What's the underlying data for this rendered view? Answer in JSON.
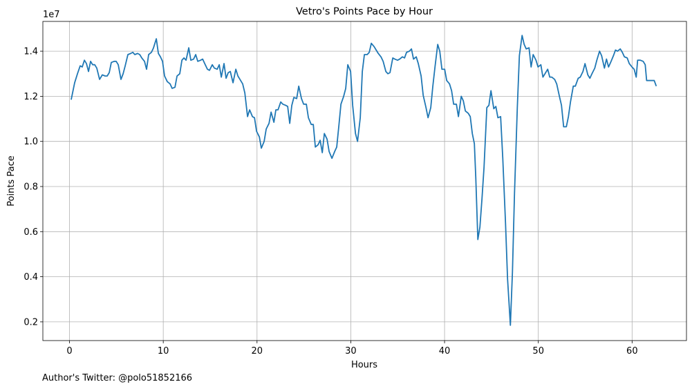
{
  "chart_data": {
    "type": "line",
    "title": "Vetro's Points Pace by Hour",
    "x_label": "Hours",
    "y_label": "Points Pace",
    "y_offset_label": "1e7",
    "footnote": "Author's Twitter: @polo51852166",
    "grid": true,
    "xlim": [
      -2.84,
      65.8
    ],
    "ylim": [
      1170000,
      15320000
    ],
    "xticks": [
      0,
      10,
      20,
      30,
      40,
      50,
      60
    ],
    "yticks": [
      {
        "value": 2000000,
        "label": "0.2"
      },
      {
        "value": 4000000,
        "label": "0.4"
      },
      {
        "value": 6000000,
        "label": "0.6"
      },
      {
        "value": 8000000,
        "label": "0.8"
      },
      {
        "value": 10000000,
        "label": "1.0"
      },
      {
        "value": 12000000,
        "label": "1.2"
      },
      {
        "value": 14000000,
        "label": "1.4"
      }
    ],
    "x": [
      0.18,
      0.55,
      0.85,
      1.14,
      1.36,
      1.59,
      1.81,
      2.03,
      2.25,
      2.47,
      2.69,
      2.91,
      3.21,
      3.5,
      3.8,
      4.02,
      4.24,
      4.46,
      4.76,
      4.98,
      5.2,
      5.49,
      5.72,
      5.94,
      6.23,
      6.53,
      6.75,
      6.97,
      7.26,
      7.49,
      7.71,
      8.0,
      8.22,
      8.44,
      8.74,
      8.96,
      9.26,
      9.48,
      9.7,
      9.92,
      10.14,
      10.43,
      10.73,
      10.95,
      11.25,
      11.47,
      11.76,
      11.99,
      12.21,
      12.43,
      12.72,
      12.94,
      13.24,
      13.46,
      13.68,
      13.98,
      14.2,
      14.42,
      14.71,
      14.93,
      15.23,
      15.45,
      15.75,
      15.97,
      16.19,
      16.48,
      16.7,
      16.93,
      17.15,
      17.44,
      17.74,
      17.96,
      18.18,
      18.47,
      18.7,
      18.99,
      19.21,
      19.51,
      19.73,
      19.95,
      20.25,
      20.46,
      20.76,
      20.98,
      21.28,
      21.5,
      21.8,
      22.01,
      22.24,
      22.53,
      22.75,
      23.05,
      23.27,
      23.49,
      23.71,
      23.93,
      24.23,
      24.45,
      24.74,
      24.97,
      25.26,
      25.48,
      25.78,
      26.0,
      26.22,
      26.51,
      26.73,
      26.96,
      27.18,
      27.47,
      27.69,
      27.99,
      28.28,
      28.5,
      28.73,
      28.95,
      29.24,
      29.46,
      29.68,
      29.98,
      30.2,
      30.5,
      30.72,
      31.01,
      31.23,
      31.45,
      31.75,
      31.97,
      32.19,
      32.49,
      32.71,
      32.93,
      33.22,
      33.45,
      33.74,
      33.96,
      34.18,
      34.48,
      34.7,
      34.99,
      35.21,
      35.51,
      35.73,
      35.95,
      36.25,
      36.47,
      36.69,
      36.98,
      37.2,
      37.5,
      37.72,
      38.02,
      38.24,
      38.53,
      38.75,
      38.98,
      39.27,
      39.49,
      39.72,
      40.01,
      40.23,
      40.53,
      40.75,
      40.97,
      41.26,
      41.48,
      41.78,
      42.0,
      42.22,
      42.52,
      42.74,
      42.96,
      43.18,
      43.33,
      43.55,
      43.77,
      43.99,
      44.21,
      44.51,
      44.73,
      44.95,
      45.25,
      45.47,
      45.69,
      45.98,
      46.21,
      46.5,
      46.72,
      47.02,
      47.24,
      47.46,
      47.76,
      47.98,
      48.27,
      48.49,
      48.71,
      49.01,
      49.23,
      49.45,
      49.75,
      49.97,
      50.27,
      50.49,
      50.71,
      51.0,
      51.22,
      51.44,
      51.74,
      51.96,
      52.25,
      52.47,
      52.7,
      52.99,
      53.21,
      53.43,
      53.73,
      53.95,
      54.25,
      54.47,
      54.76,
      54.98,
      55.28,
      55.5,
      55.72,
      56.02,
      56.24,
      56.53,
      56.75,
      57.05,
      57.27,
      57.49,
      57.71,
      58.01,
      58.23,
      58.45,
      58.74,
      58.96,
      59.18,
      59.48,
      59.7,
      59.99,
      60.22,
      60.44,
      60.59,
      60.88,
      61.18,
      61.4,
      61.55,
      61.84,
      62.06,
      62.36,
      62.58
    ],
    "series": [
      {
        "name": "Points Pace",
        "color": "#1f77b4",
        "values": [
          11850000,
          12600000,
          13000000,
          13350000,
          13300000,
          13600000,
          13450000,
          13100000,
          13550000,
          13400000,
          13400000,
          13250000,
          12750000,
          12950000,
          12900000,
          12900000,
          13050000,
          13500000,
          13550000,
          13550000,
          13400000,
          12750000,
          13000000,
          13350000,
          13850000,
          13900000,
          13950000,
          13850000,
          13900000,
          13850000,
          13700000,
          13550000,
          13200000,
          13850000,
          13950000,
          14150000,
          14550000,
          13900000,
          13750000,
          13550000,
          12900000,
          12650000,
          12550000,
          12350000,
          12400000,
          12900000,
          13000000,
          13600000,
          13700000,
          13600000,
          14150000,
          13600000,
          13650000,
          13850000,
          13550000,
          13600000,
          13650000,
          13450000,
          13200000,
          13150000,
          13400000,
          13250000,
          13200000,
          13400000,
          12850000,
          13450000,
          12800000,
          13050000,
          13100000,
          12600000,
          13200000,
          12900000,
          12750000,
          12550000,
          12150000,
          11100000,
          11400000,
          11100000,
          11050000,
          10450000,
          10200000,
          9700000,
          10000000,
          10550000,
          10800000,
          11300000,
          10850000,
          11400000,
          11400000,
          11750000,
          11650000,
          11600000,
          11550000,
          10800000,
          11600000,
          11950000,
          11900000,
          12450000,
          11900000,
          11650000,
          11650000,
          11050000,
          10750000,
          10750000,
          9750000,
          9850000,
          10050000,
          9500000,
          10350000,
          10100000,
          9550000,
          9250000,
          9550000,
          9750000,
          10700000,
          11650000,
          12000000,
          12350000,
          13400000,
          13100000,
          11600000,
          10350000,
          10000000,
          11050000,
          13100000,
          13850000,
          13850000,
          13950000,
          14350000,
          14200000,
          14050000,
          13900000,
          13750000,
          13550000,
          13100000,
          13000000,
          13050000,
          13700000,
          13650000,
          13600000,
          13650000,
          13750000,
          13700000,
          13950000,
          14000000,
          14100000,
          13650000,
          13750000,
          13450000,
          12900000,
          12050000,
          11500000,
          11050000,
          11500000,
          12450000,
          13300000,
          14300000,
          14000000,
          13200000,
          13200000,
          12700000,
          12550000,
          12250000,
          11650000,
          11650000,
          11100000,
          12000000,
          11800000,
          11350000,
          11250000,
          11100000,
          10350000,
          9900000,
          8400000,
          5650000,
          6200000,
          7450000,
          8850000,
          11500000,
          11600000,
          12250000,
          11450000,
          11550000,
          11050000,
          11100000,
          9250000,
          6400000,
          3900000,
          1850000,
          4200000,
          7700000,
          11500000,
          13800000,
          14700000,
          14300000,
          14100000,
          14150000,
          13300000,
          13850000,
          13600000,
          13300000,
          13400000,
          12850000,
          13000000,
          13200000,
          12850000,
          12850000,
          12750000,
          12550000,
          12000000,
          11600000,
          10650000,
          10650000,
          11100000,
          11750000,
          12450000,
          12450000,
          12800000,
          12850000,
          13100000,
          13450000,
          12950000,
          12800000,
          13000000,
          13250000,
          13600000,
          14000000,
          13800000,
          13250000,
          13650000,
          13300000,
          13500000,
          13800000,
          14050000,
          14000000,
          14100000,
          13950000,
          13750000,
          13700000,
          13450000,
          13300000,
          13200000,
          12850000,
          13600000,
          13600000,
          13550000,
          13400000,
          12700000,
          12700000,
          12700000,
          12700000,
          12450000
        ]
      }
    ]
  }
}
